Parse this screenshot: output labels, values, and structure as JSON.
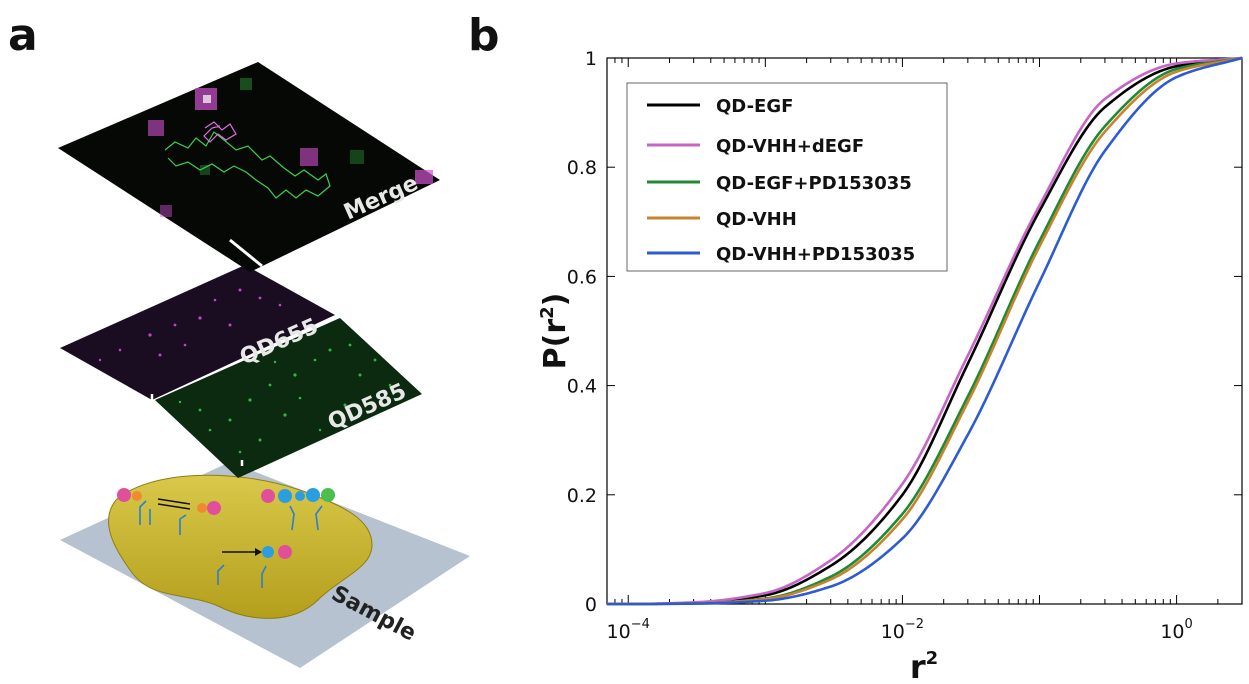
{
  "panel_a": {
    "label": "a",
    "layers": [
      {
        "name": "merge",
        "text": "Merge"
      },
      {
        "name": "qd655",
        "text": "QD655"
      },
      {
        "name": "qd585",
        "text": "QD585"
      },
      {
        "name": "sample",
        "text": "Sample"
      }
    ],
    "colors": {
      "magenta": "#d050d0",
      "green": "#3ccf4e",
      "yellow_cell": "#c8b52a",
      "slide": "#b4c0cf"
    }
  },
  "panel_b": {
    "label": "b"
  },
  "chart_data": {
    "type": "line",
    "xscale": "log",
    "xlim": [
      7e-05,
      3.0
    ],
    "ylim": [
      0,
      1
    ],
    "xticks": [
      {
        "value": 0.0001,
        "base": "10",
        "exp": "−4"
      },
      {
        "value": 0.01,
        "base": "10",
        "exp": "−2"
      },
      {
        "value": 1,
        "base": "10",
        "exp": "0"
      }
    ],
    "yticks": [
      {
        "value": 0,
        "label": "0"
      },
      {
        "value": 0.2,
        "label": "0.2"
      },
      {
        "value": 0.4,
        "label": "0.4"
      },
      {
        "value": 0.6,
        "label": "0.6"
      },
      {
        "value": 0.8,
        "label": "0.8"
      },
      {
        "value": 1,
        "label": "1"
      }
    ],
    "xlabel": {
      "base": "r",
      "exp": "2"
    },
    "ylabel": {
      "base": "P(r",
      "exp": "2",
      "close": ")"
    },
    "legend_position": "top-left",
    "grid": false,
    "x": [
      7e-05,
      0.0001,
      0.0003,
      0.001,
      0.003,
      0.01,
      0.03,
      0.1,
      0.3,
      1,
      3
    ],
    "series": [
      {
        "name": "QD-EGF",
        "color": "#000000",
        "values": [
          0,
          0,
          0.002,
          0.016,
          0.07,
          0.2,
          0.44,
          0.72,
          0.91,
          0.985,
          1.0
        ]
      },
      {
        "name": "QD-VHH+dEGF",
        "color": "#c665c6",
        "values": [
          0,
          0,
          0.003,
          0.02,
          0.08,
          0.22,
          0.455,
          0.73,
          0.925,
          0.99,
          1.0
        ]
      },
      {
        "name": "QD-EGF+PD153035",
        "color": "#1e8a32",
        "values": [
          0,
          0,
          0.001,
          0.01,
          0.05,
          0.165,
          0.38,
          0.665,
          0.875,
          0.98,
          1.0
        ]
      },
      {
        "name": "QD-VHH",
        "color": "#c8832e",
        "values": [
          0,
          0,
          0.001,
          0.009,
          0.045,
          0.155,
          0.37,
          0.655,
          0.865,
          0.975,
          1.0
        ]
      },
      {
        "name": "QD-VHH+PD153035",
        "color": "#2f5bd0",
        "values": [
          0,
          0,
          0.0007,
          0.006,
          0.032,
          0.12,
          0.31,
          0.59,
          0.83,
          0.965,
          1.0
        ]
      }
    ]
  }
}
